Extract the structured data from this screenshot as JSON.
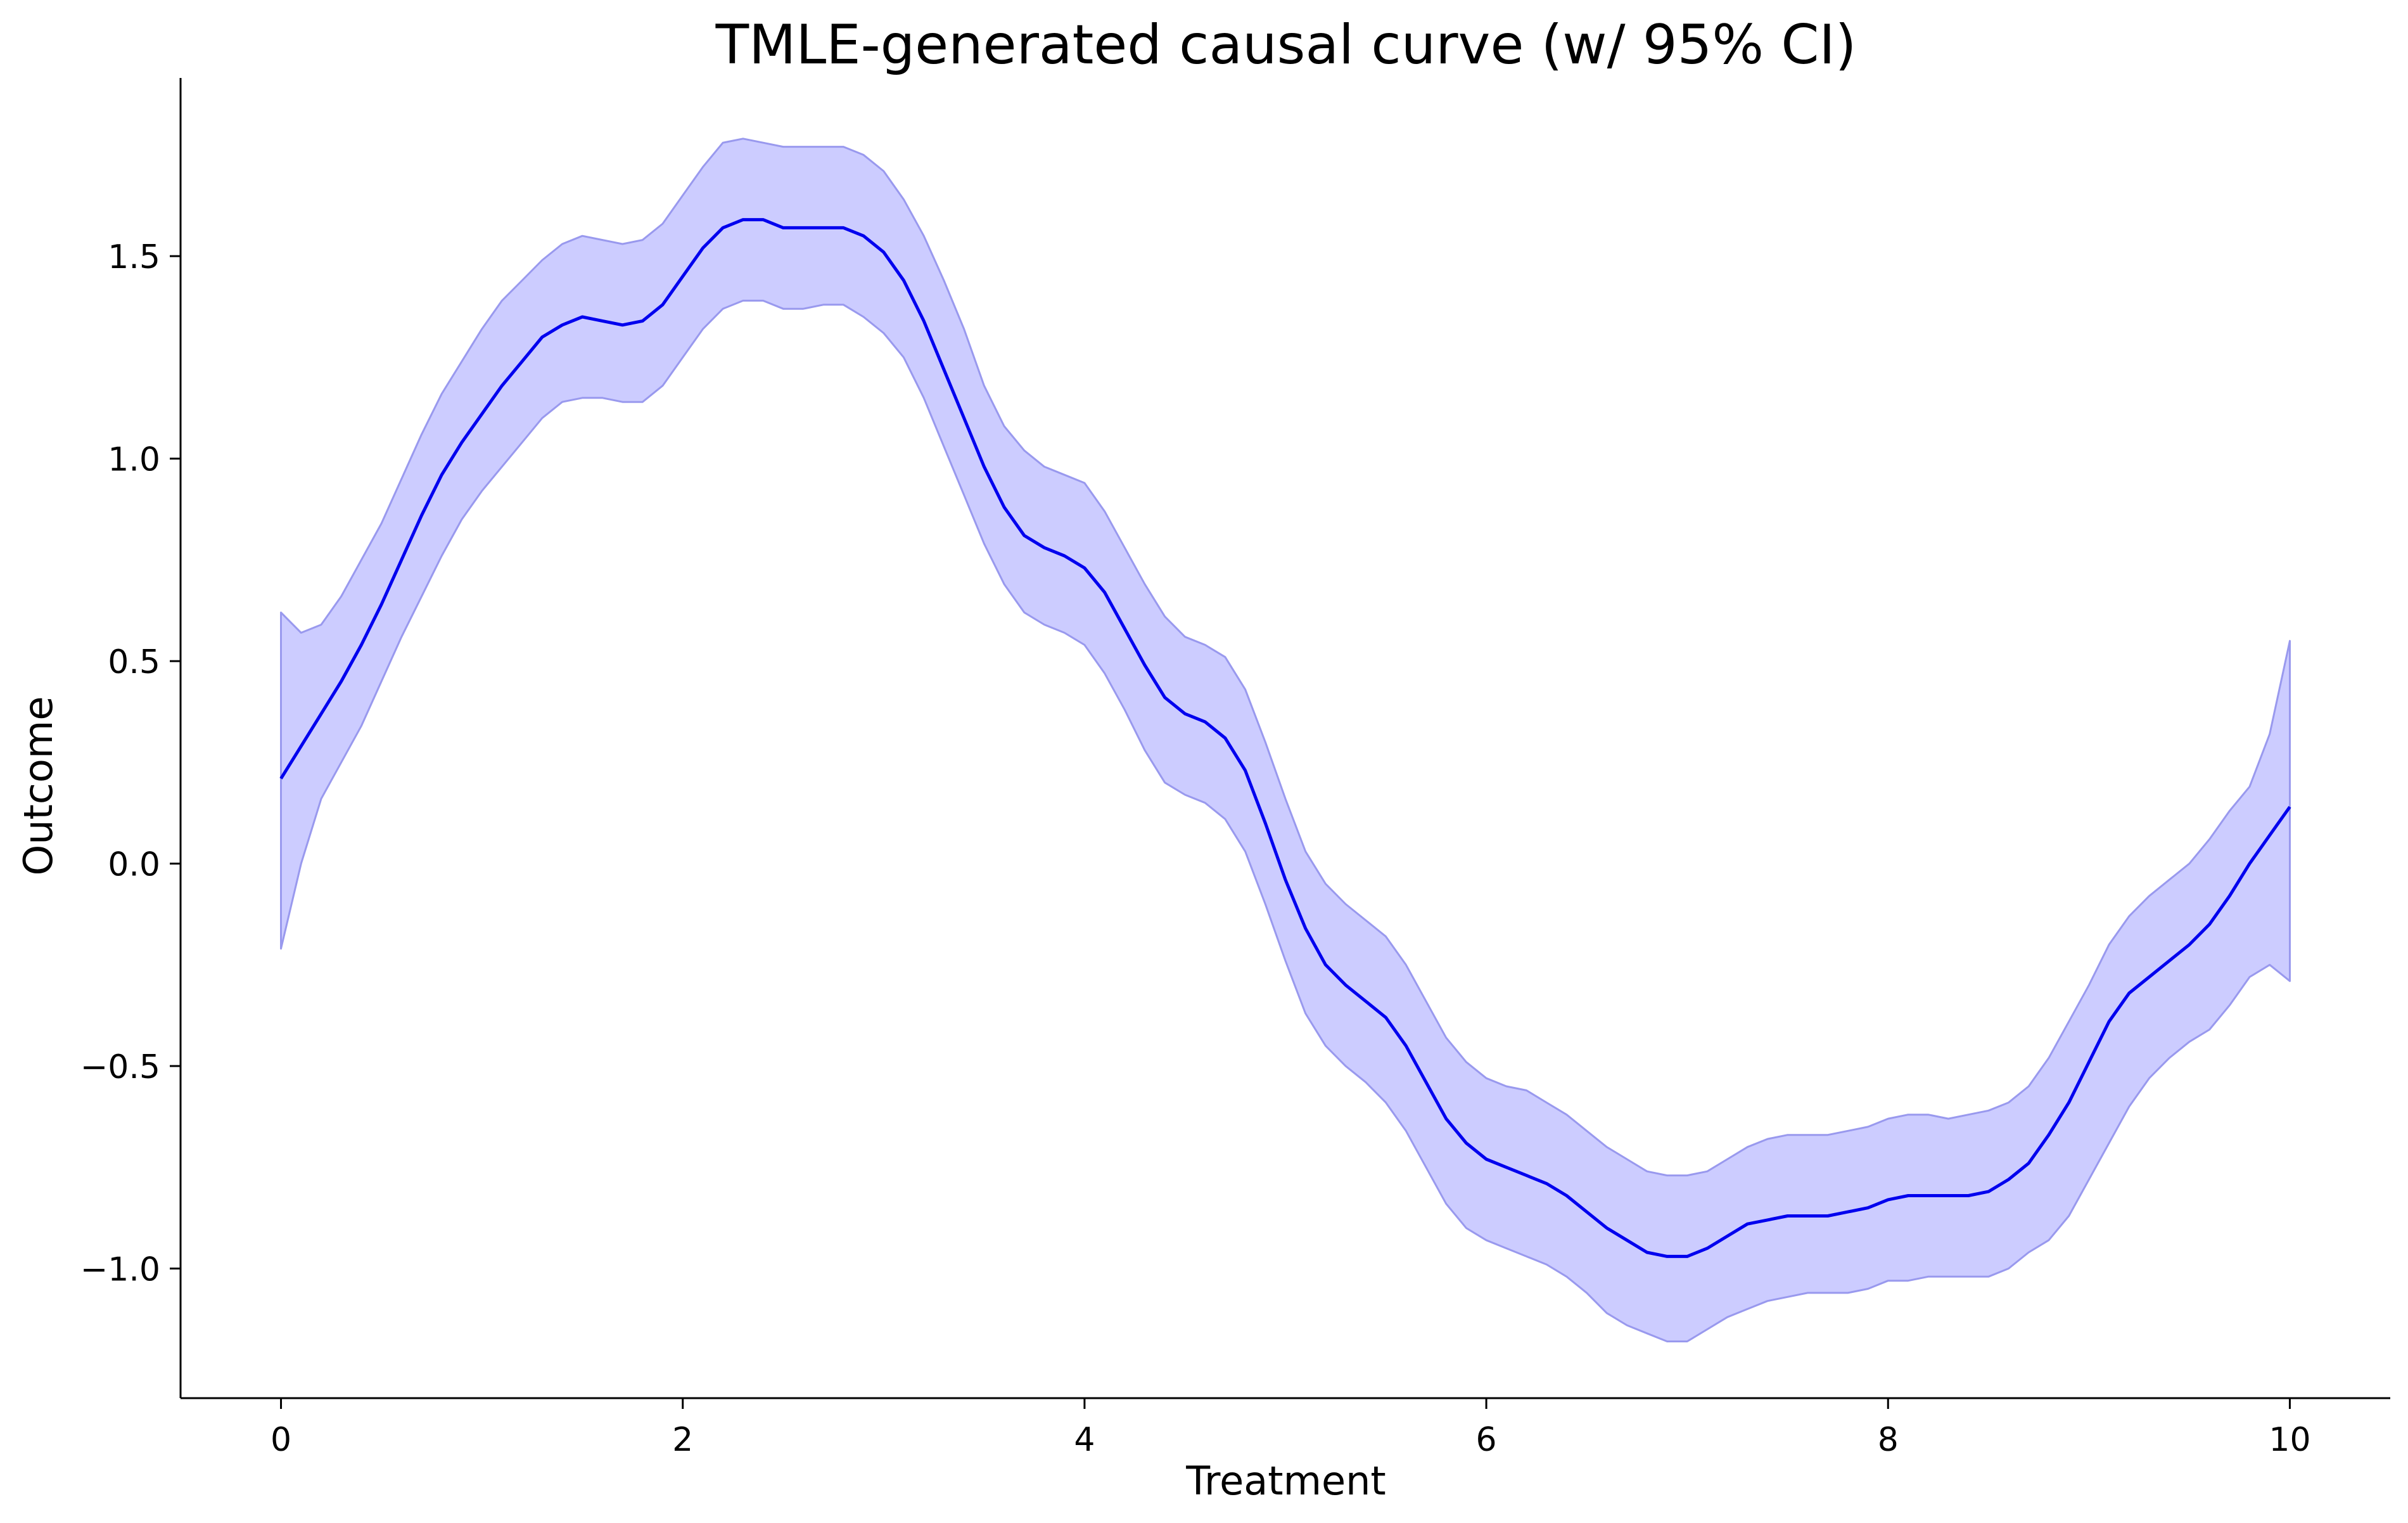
{
  "chart_data": {
    "type": "line",
    "title": "TMLE-generated causal curve (w/ 95% CI)",
    "xlabel": "Treatment",
    "ylabel": "Outcome",
    "xlim": [
      -0.5,
      10.5
    ],
    "ylim": [
      -1.32,
      1.94
    ],
    "grid": false,
    "x_ticks": [
      0,
      2,
      4,
      6,
      8,
      10
    ],
    "x_tick_labels": [
      "0",
      "2",
      "4",
      "6",
      "8",
      "10"
    ],
    "y_ticks": [
      -1.0,
      -0.5,
      0.0,
      0.5,
      1.0,
      1.5
    ],
    "y_tick_labels": [
      "−1.0",
      "−0.5",
      "0.0",
      "0.5",
      "1.0",
      "1.5"
    ],
    "line_color": "#0000ee",
    "band_color": "#ccccff",
    "band_edge_color": "#9999ee",
    "series": [
      {
        "kind": "line",
        "x": [
          0.0,
          0.1,
          0.2,
          0.3,
          0.4,
          0.5,
          0.6,
          0.7,
          0.8,
          0.9,
          1.0,
          1.1,
          1.2,
          1.3,
          1.4,
          1.5,
          1.6,
          1.7,
          1.8,
          1.9,
          2.0,
          2.1,
          2.2,
          2.3,
          2.4,
          2.5,
          2.6,
          2.7,
          2.8,
          2.9,
          3.0,
          3.1,
          3.2,
          3.3,
          3.4,
          3.5,
          3.6,
          3.7,
          3.8,
          3.9,
          4.0,
          4.1,
          4.2,
          4.3,
          4.4,
          4.5,
          4.6,
          4.7,
          4.8,
          4.9,
          5.0,
          5.1,
          5.2,
          5.3,
          5.4,
          5.5,
          5.6,
          5.7,
          5.8,
          5.9,
          6.0,
          6.1,
          6.2,
          6.3,
          6.4,
          6.5,
          6.6,
          6.7,
          6.8,
          6.9,
          7.0,
          7.1,
          7.2,
          7.3,
          7.4,
          7.5,
          7.6,
          7.7,
          7.8,
          7.9,
          8.0,
          8.1,
          8.2,
          8.3,
          8.4,
          8.5,
          8.6,
          8.7,
          8.8,
          8.9,
          9.0,
          9.1,
          9.2,
          9.3,
          9.4,
          9.5,
          9.6,
          9.7,
          9.8,
          9.9,
          10.0
        ],
        "y": [
          0.21,
          0.29,
          0.37,
          0.45,
          0.54,
          0.64,
          0.75,
          0.86,
          0.96,
          1.04,
          1.11,
          1.18,
          1.24,
          1.3,
          1.33,
          1.35,
          1.34,
          1.33,
          1.34,
          1.38,
          1.45,
          1.52,
          1.57,
          1.59,
          1.59,
          1.57,
          1.57,
          1.57,
          1.57,
          1.55,
          1.51,
          1.44,
          1.34,
          1.22,
          1.1,
          0.98,
          0.88,
          0.81,
          0.78,
          0.76,
          0.73,
          0.67,
          0.58,
          0.49,
          0.41,
          0.37,
          0.35,
          0.31,
          0.23,
          0.1,
          -0.04,
          -0.16,
          -0.25,
          -0.3,
          -0.34,
          -0.38,
          -0.45,
          -0.54,
          -0.63,
          -0.69,
          -0.73,
          -0.75,
          -0.77,
          -0.79,
          -0.82,
          -0.86,
          -0.9,
          -0.93,
          -0.96,
          -0.97,
          -0.97,
          -0.95,
          -0.92,
          -0.89,
          -0.88,
          -0.87,
          -0.87,
          -0.87,
          -0.86,
          -0.85,
          -0.83,
          -0.82,
          -0.82,
          -0.82,
          -0.82,
          -0.81,
          -0.78,
          -0.74,
          -0.67,
          -0.59,
          -0.49,
          -0.39,
          -0.32,
          -0.28,
          -0.24,
          -0.2,
          -0.15,
          -0.08,
          0.0,
          0.07,
          0.14
        ]
      },
      {
        "kind": "band",
        "x": [
          0.0,
          0.1,
          0.2,
          0.3,
          0.4,
          0.5,
          0.6,
          0.7,
          0.8,
          0.9,
          1.0,
          1.1,
          1.2,
          1.3,
          1.4,
          1.5,
          1.6,
          1.7,
          1.8,
          1.9,
          2.0,
          2.1,
          2.2,
          2.3,
          2.4,
          2.5,
          2.6,
          2.7,
          2.8,
          2.9,
          3.0,
          3.1,
          3.2,
          3.3,
          3.4,
          3.5,
          3.6,
          3.7,
          3.8,
          3.9,
          4.0,
          4.1,
          4.2,
          4.3,
          4.4,
          4.5,
          4.6,
          4.7,
          4.8,
          4.9,
          5.0,
          5.1,
          5.2,
          5.3,
          5.4,
          5.5,
          5.6,
          5.7,
          5.8,
          5.9,
          6.0,
          6.1,
          6.2,
          6.3,
          6.4,
          6.5,
          6.6,
          6.7,
          6.8,
          6.9,
          7.0,
          7.1,
          7.2,
          7.3,
          7.4,
          7.5,
          7.6,
          7.7,
          7.8,
          7.9,
          8.0,
          8.1,
          8.2,
          8.3,
          8.4,
          8.5,
          8.6,
          8.7,
          8.8,
          8.9,
          9.0,
          9.1,
          9.2,
          9.3,
          9.4,
          9.5,
          9.6,
          9.7,
          9.8,
          9.9,
          10.0
        ],
        "lower": [
          -0.21,
          0.0,
          0.16,
          0.25,
          0.34,
          0.45,
          0.56,
          0.66,
          0.76,
          0.85,
          0.92,
          0.98,
          1.04,
          1.1,
          1.14,
          1.15,
          1.15,
          1.14,
          1.14,
          1.18,
          1.25,
          1.32,
          1.37,
          1.39,
          1.39,
          1.37,
          1.37,
          1.38,
          1.38,
          1.35,
          1.31,
          1.25,
          1.15,
          1.03,
          0.91,
          0.79,
          0.69,
          0.62,
          0.59,
          0.57,
          0.54,
          0.47,
          0.38,
          0.28,
          0.2,
          0.17,
          0.15,
          0.11,
          0.03,
          -0.1,
          -0.24,
          -0.37,
          -0.45,
          -0.5,
          -0.54,
          -0.59,
          -0.66,
          -0.75,
          -0.84,
          -0.9,
          -0.93,
          -0.95,
          -0.97,
          -0.99,
          -1.02,
          -1.06,
          -1.11,
          -1.14,
          -1.16,
          -1.18,
          -1.18,
          -1.15,
          -1.12,
          -1.1,
          -1.08,
          -1.07,
          -1.06,
          -1.06,
          -1.06,
          -1.05,
          -1.03,
          -1.03,
          -1.02,
          -1.02,
          -1.02,
          -1.02,
          -1.0,
          -0.96,
          -0.93,
          -0.87,
          -0.78,
          -0.69,
          -0.6,
          -0.53,
          -0.48,
          -0.44,
          -0.41,
          -0.35,
          -0.28,
          -0.25,
          -0.29
        ],
        "upper": [
          0.62,
          0.57,
          0.59,
          0.66,
          0.75,
          0.84,
          0.95,
          1.06,
          1.16,
          1.24,
          1.32,
          1.39,
          1.44,
          1.49,
          1.53,
          1.55,
          1.54,
          1.53,
          1.54,
          1.58,
          1.65,
          1.72,
          1.78,
          1.79,
          1.78,
          1.77,
          1.77,
          1.77,
          1.77,
          1.75,
          1.71,
          1.64,
          1.55,
          1.44,
          1.32,
          1.18,
          1.08,
          1.02,
          0.98,
          0.96,
          0.94,
          0.87,
          0.78,
          0.69,
          0.61,
          0.56,
          0.54,
          0.51,
          0.43,
          0.3,
          0.16,
          0.03,
          -0.05,
          -0.1,
          -0.14,
          -0.18,
          -0.25,
          -0.34,
          -0.43,
          -0.49,
          -0.53,
          -0.55,
          -0.56,
          -0.59,
          -0.62,
          -0.66,
          -0.7,
          -0.73,
          -0.76,
          -0.77,
          -0.77,
          -0.76,
          -0.73,
          -0.7,
          -0.68,
          -0.67,
          -0.67,
          -0.67,
          -0.66,
          -0.65,
          -0.63,
          -0.62,
          -0.62,
          -0.63,
          -0.62,
          -0.61,
          -0.59,
          -0.55,
          -0.48,
          -0.39,
          -0.3,
          -0.2,
          -0.13,
          -0.08,
          -0.04,
          0.0,
          0.06,
          0.13,
          0.19,
          0.32,
          0.55
        ]
      }
    ]
  }
}
